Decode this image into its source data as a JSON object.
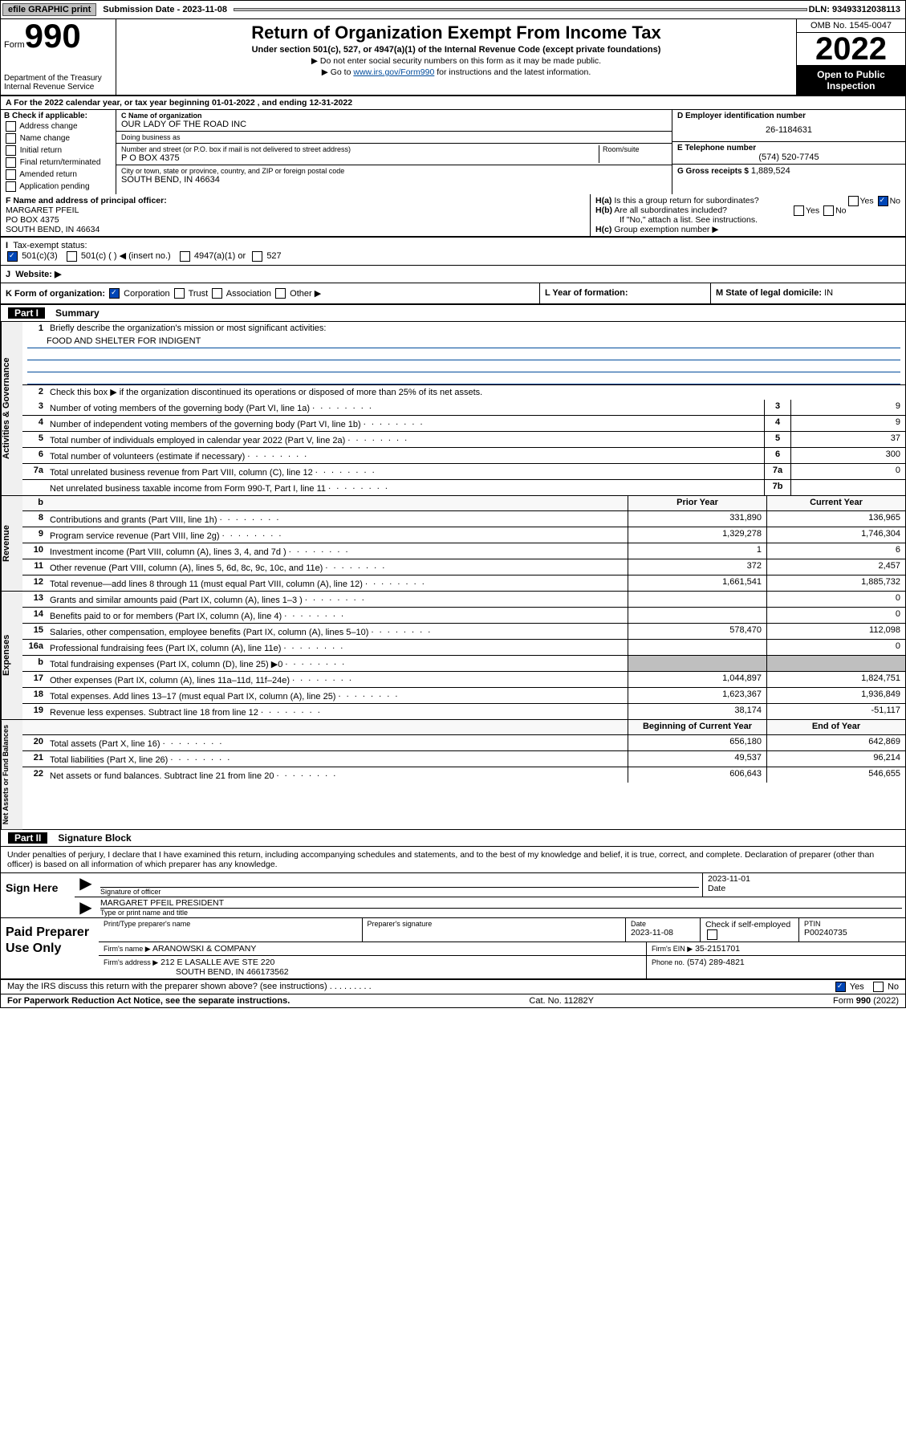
{
  "topbar": {
    "efile": "efile GRAPHIC print",
    "sub_label": "Submission Date - 2023-11-08",
    "dln": "DLN: 93493312038113"
  },
  "header": {
    "form_word": "Form",
    "form_num": "990",
    "dept": "Department of the Treasury",
    "irs": "Internal Revenue Service",
    "title": "Return of Organization Exempt From Income Tax",
    "sub1": "Under section 501(c), 527, or 4947(a)(1) of the Internal Revenue Code (except private foundations)",
    "sub2": "Do not enter social security numbers on this form as it may be made public.",
    "sub3_pre": "Go to ",
    "sub3_link": "www.irs.gov/Form990",
    "sub3_post": " for instructions and the latest information.",
    "omb": "OMB No. 1545-0047",
    "year": "2022",
    "inspect": "Open to Public Inspection"
  },
  "lineA": "For the 2022 calendar year, or tax year beginning 01-01-2022    , and ending 12-31-2022",
  "boxB": {
    "title": "B Check if applicable:",
    "opts": [
      "Address change",
      "Name change",
      "Initial return",
      "Final return/terminated",
      "Amended return",
      "Application pending"
    ]
  },
  "boxC": {
    "name_lbl": "C Name of organization",
    "name": "OUR LADY OF THE ROAD INC",
    "dba_lbl": "Doing business as",
    "dba": "",
    "addr_lbl": "Number and street (or P.O. box if mail is not delivered to street address)",
    "room_lbl": "Room/suite",
    "addr": "P O BOX 4375",
    "city_lbl": "City or town, state or province, country, and ZIP or foreign postal code",
    "city": "SOUTH BEND, IN  46634"
  },
  "boxD": {
    "lbl": "D Employer identification number",
    "val": "26-1184631"
  },
  "boxE": {
    "lbl": "E Telephone number",
    "val": "(574) 520-7745"
  },
  "boxG": {
    "lbl": "G Gross receipts $",
    "val": "1,889,524"
  },
  "boxF": {
    "lbl": "F Name and address of principal officer:",
    "name": "MARGARET PFEIL",
    "addr1": "PO BOX 4375",
    "addr2": "SOUTH BEND, IN  46634"
  },
  "boxH": {
    "ha": "Is this a group return for subordinates?",
    "ha_yes": "Yes",
    "ha_no": "No",
    "hb": "Are all subordinates included?",
    "hb_yes": "Yes",
    "hb_no": "No",
    "note": "If \"No,\" attach a list. See instructions.",
    "hc": "Group exemption number ▶"
  },
  "boxI": {
    "lbl": "Tax-exempt status:",
    "o1": "501(c)(3)",
    "o2": "501(c) (   ) ◀ (insert no.)",
    "o3": "4947(a)(1) or",
    "o4": "527"
  },
  "boxJ": {
    "lbl": "Website: ▶",
    "val": ""
  },
  "boxK": {
    "lbl": "K Form of organization:",
    "o1": "Corporation",
    "o2": "Trust",
    "o3": "Association",
    "o4": "Other ▶"
  },
  "boxL": {
    "lbl": "L Year of formation:",
    "val": ""
  },
  "boxM": {
    "lbl": "M State of legal domicile:",
    "val": "IN"
  },
  "part1": {
    "label": "Part I",
    "title": "Summary"
  },
  "summary": {
    "q1": "Briefly describe the organization's mission or most significant activities:",
    "mission": "FOOD AND SHELTER FOR INDIGENT",
    "q2": "Check this box ▶        if the organization discontinued its operations or disposed of more than 25% of its net assets.",
    "rows_a": [
      {
        "n": "3",
        "d": "Number of voting members of the governing body (Part VI, line 1a)",
        "b": "3",
        "v": "9"
      },
      {
        "n": "4",
        "d": "Number of independent voting members of the governing body (Part VI, line 1b)",
        "b": "4",
        "v": "9"
      },
      {
        "n": "5",
        "d": "Total number of individuals employed in calendar year 2022 (Part V, line 2a)",
        "b": "5",
        "v": "37"
      },
      {
        "n": "6",
        "d": "Total number of volunteers (estimate if necessary)",
        "b": "6",
        "v": "300"
      },
      {
        "n": "7a",
        "d": "Total unrelated business revenue from Part VIII, column (C), line 12",
        "b": "7a",
        "v": "0"
      },
      {
        "n": "",
        "d": "Net unrelated business taxable income from Form 990-T, Part I, line 11",
        "b": "7b",
        "v": ""
      }
    ],
    "hdr_prior": "Prior Year",
    "hdr_curr": "Current Year",
    "rows_rev": [
      {
        "n": "8",
        "d": "Contributions and grants (Part VIII, line 1h)",
        "p": "331,890",
        "c": "136,965"
      },
      {
        "n": "9",
        "d": "Program service revenue (Part VIII, line 2g)",
        "p": "1,329,278",
        "c": "1,746,304"
      },
      {
        "n": "10",
        "d": "Investment income (Part VIII, column (A), lines 3, 4, and 7d )",
        "p": "1",
        "c": "6"
      },
      {
        "n": "11",
        "d": "Other revenue (Part VIII, column (A), lines 5, 6d, 8c, 9c, 10c, and 11e)",
        "p": "372",
        "c": "2,457"
      },
      {
        "n": "12",
        "d": "Total revenue—add lines 8 through 11 (must equal Part VIII, column (A), line 12)",
        "p": "1,661,541",
        "c": "1,885,732"
      }
    ],
    "rows_exp": [
      {
        "n": "13",
        "d": "Grants and similar amounts paid (Part IX, column (A), lines 1–3 )",
        "p": "",
        "c": "0"
      },
      {
        "n": "14",
        "d": "Benefits paid to or for members (Part IX, column (A), line 4)",
        "p": "",
        "c": "0"
      },
      {
        "n": "15",
        "d": "Salaries, other compensation, employee benefits (Part IX, column (A), lines 5–10)",
        "p": "578,470",
        "c": "112,098"
      },
      {
        "n": "16a",
        "d": "Professional fundraising fees (Part IX, column (A), line 11e)",
        "p": "",
        "c": "0"
      },
      {
        "n": "b",
        "d": "Total fundraising expenses (Part IX, column (D), line 25) ▶0",
        "p": "",
        "c": "",
        "shade": true
      },
      {
        "n": "17",
        "d": "Other expenses (Part IX, column (A), lines 11a–11d, 11f–24e)",
        "p": "1,044,897",
        "c": "1,824,751"
      },
      {
        "n": "18",
        "d": "Total expenses. Add lines 13–17 (must equal Part IX, column (A), line 25)",
        "p": "1,623,367",
        "c": "1,936,849"
      },
      {
        "n": "19",
        "d": "Revenue less expenses. Subtract line 18 from line 12",
        "p": "38,174",
        "c": "-51,117"
      }
    ],
    "hdr_beg": "Beginning of Current Year",
    "hdr_end": "End of Year",
    "rows_net": [
      {
        "n": "20",
        "d": "Total assets (Part X, line 16)",
        "p": "656,180",
        "c": "642,869"
      },
      {
        "n": "21",
        "d": "Total liabilities (Part X, line 26)",
        "p": "49,537",
        "c": "96,214"
      },
      {
        "n": "22",
        "d": "Net assets or fund balances. Subtract line 21 from line 20",
        "p": "606,643",
        "c": "546,655"
      }
    ],
    "vtabs": {
      "gov": "Activities & Governance",
      "rev": "Revenue",
      "exp": "Expenses",
      "net": "Net Assets or Fund Balances"
    }
  },
  "part2": {
    "label": "Part II",
    "title": "Signature Block"
  },
  "sig": {
    "disclaimer": "Under penalties of perjury, I declare that I have examined this return, including accompanying schedules and statements, and to the best of my knowledge and belief, it is true, correct, and complete. Declaration of preparer (other than officer) is based on all information of which preparer has any knowledge.",
    "sign_here": "Sign Here",
    "sig_lbl": "Signature of officer",
    "date_lbl": "Date",
    "date_val": "2023-11-01",
    "name": "MARGARET PFEIL  PRESIDENT",
    "name_lbl": "Type or print name and title"
  },
  "prep": {
    "title": "Paid Preparer Use Only",
    "r1": {
      "c1_lbl": "Print/Type preparer's name",
      "c1": "",
      "c2_lbl": "Preparer's signature",
      "c2": "",
      "c3_lbl": "Date",
      "c3": "2023-11-08",
      "c4_lbl": "Check         if self-employed",
      "c5_lbl": "PTIN",
      "c5": "P00240735"
    },
    "r2": {
      "c1_lbl": "Firm's name    ▶",
      "c1": "ARANOWSKI & COMPANY",
      "c2_lbl": "Firm's EIN ▶",
      "c2": "35-2151701"
    },
    "r3": {
      "c1_lbl": "Firm's address ▶",
      "c1": "212 E LASALLE AVE STE 220",
      "c1b": "SOUTH BEND, IN  466173562",
      "c2_lbl": "Phone no.",
      "c2": "(574) 289-4821"
    }
  },
  "may_discuss": "May the IRS discuss this return with the preparer shown above? (see instructions)",
  "may_yes": "Yes",
  "may_no": "No",
  "footer": {
    "left": "For Paperwork Reduction Act Notice, see the separate instructions.",
    "mid": "Cat. No. 11282Y",
    "right": "Form 990 (2022)"
  }
}
